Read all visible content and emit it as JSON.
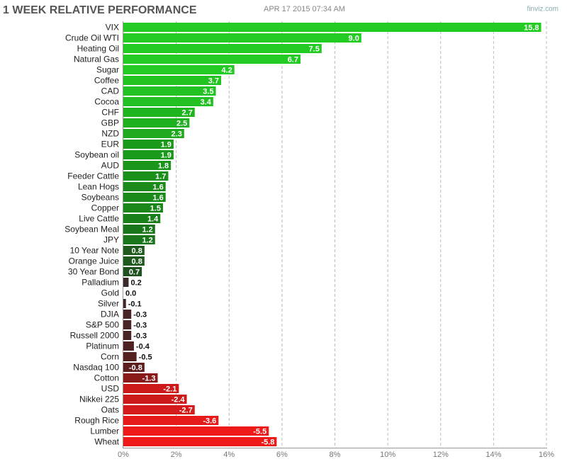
{
  "chart_data": {
    "type": "barh",
    "title": "1 WEEK RELATIVE PERFORMANCE",
    "subtitle": "APR 17 2015 07:34 AM",
    "source": "finviz.com",
    "categories": [
      "VIX",
      "Crude Oil WTI",
      "Heating Oil",
      "Natural Gas",
      "Sugar",
      "Coffee",
      "CAD",
      "Cocoa",
      "CHF",
      "GBP",
      "NZD",
      "EUR",
      "Soybean oil",
      "AUD",
      "Feeder Cattle",
      "Lean Hogs",
      "Soybeans",
      "Copper",
      "Live Cattle",
      "Soybean Meal",
      "JPY",
      "10 Year Note",
      "Orange Juice",
      "30 Year Bond",
      "Palladium",
      "Gold",
      "Silver",
      "DJIA",
      "S&P 500",
      "Russell 2000",
      "Platinum",
      "Corn",
      "Nasdaq 100",
      "Cotton",
      "USD",
      "Nikkei 225",
      "Oats",
      "Rough Rice",
      "Lumber",
      "Wheat"
    ],
    "values": [
      15.8,
      9.0,
      7.5,
      6.7,
      4.2,
      3.7,
      3.5,
      3.4,
      2.7,
      2.5,
      2.3,
      1.9,
      1.9,
      1.8,
      1.7,
      1.6,
      1.6,
      1.5,
      1.4,
      1.2,
      1.2,
      0.8,
      0.8,
      0.7,
      0.2,
      0.0,
      -0.1,
      -0.3,
      -0.3,
      -0.3,
      -0.4,
      -0.5,
      -0.8,
      -1.3,
      -2.1,
      -2.4,
      -2.7,
      -3.6,
      -5.5,
      -5.8
    ],
    "value_labels": [
      "15.8",
      "9.0",
      "7.5",
      "6.7",
      "4.2",
      "3.7",
      "3.5",
      "3.4",
      "2.7",
      "2.5",
      "2.3",
      "1.9",
      "1.9",
      "1.8",
      "1.7",
      "1.6",
      "1.6",
      "1.5",
      "1.4",
      "1.2",
      "1.2",
      "0.8",
      "0.8",
      "0.7",
      "0.2",
      "0.0",
      "-0.1",
      "-0.3",
      "-0.3",
      "-0.3",
      "-0.4",
      "-0.5",
      "-0.8",
      "-1.3",
      "-2.1",
      "-2.4",
      "-2.7",
      "-3.6",
      "-5.5",
      "-5.8"
    ],
    "colors": [
      "#22cc22",
      "#22cc22",
      "#22cc22",
      "#22cc22",
      "#22cc22",
      "#22c422",
      "#22c222",
      "#22c022",
      "#1fb51f",
      "#1fb01f",
      "#1faa1f",
      "#1a9a1a",
      "#1a9a1a",
      "#1a961a",
      "#1a901a",
      "#1a8a1a",
      "#1a8a1a",
      "#1a861a",
      "#1a801a",
      "#1a761a",
      "#1a761a",
      "#1f5a1f",
      "#1f5a1f",
      "#1f521f",
      "#3a2a2a",
      "#3a2a2a",
      "#442626",
      "#4a2424",
      "#4a2424",
      "#4a2424",
      "#4e2222",
      "#552020",
      "#5e1e1e",
      "#8a1a1a",
      "#cc1a1a",
      "#cc1a1a",
      "#d41a1a",
      "#e61a1a",
      "#ee1a1a",
      "#ee1a1a"
    ],
    "xlim": [
      0,
      16
    ],
    "xticks": [
      {
        "value": 0,
        "label": "0%"
      },
      {
        "value": 2,
        "label": "2%"
      },
      {
        "value": 4,
        "label": "4%"
      },
      {
        "value": 6,
        "label": "6%"
      },
      {
        "value": 8,
        "label": "8%"
      },
      {
        "value": 10,
        "label": "10%"
      },
      {
        "value": 12,
        "label": "12%"
      },
      {
        "value": 14,
        "label": "14%"
      },
      {
        "value": 16,
        "label": "16%"
      }
    ],
    "grid": true
  }
}
